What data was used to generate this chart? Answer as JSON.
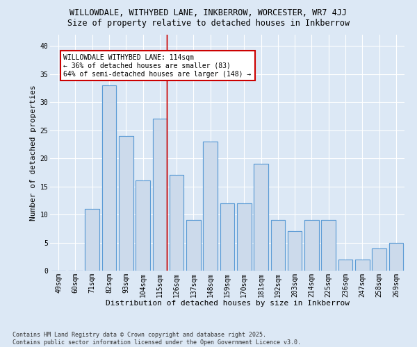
{
  "title1": "WILLOWDALE, WITHYBED LANE, INKBERROW, WORCESTER, WR7 4JJ",
  "title2": "Size of property relative to detached houses in Inkberrow",
  "xlabel": "Distribution of detached houses by size in Inkberrow",
  "ylabel": "Number of detached properties",
  "categories": [
    "49sqm",
    "60sqm",
    "71sqm",
    "82sqm",
    "93sqm",
    "104sqm",
    "115sqm",
    "126sqm",
    "137sqm",
    "148sqm",
    "159sqm",
    "170sqm",
    "181sqm",
    "192sqm",
    "203sqm",
    "214sqm",
    "225sqm",
    "236sqm",
    "247sqm",
    "258sqm",
    "269sqm"
  ],
  "values": [
    0,
    0,
    11,
    33,
    24,
    16,
    27,
    17,
    9,
    23,
    12,
    12,
    19,
    9,
    7,
    9,
    9,
    2,
    2,
    4,
    5
  ],
  "bar_color": "#ccdaeb",
  "bar_edge_color": "#5b9bd5",
  "red_line_index": 6,
  "annotation_text": "WILLOWDALE WITHYBED LANE: 114sqm\n← 36% of detached houses are smaller (83)\n64% of semi-detached houses are larger (148) →",
  "annotation_box_color": "#ffffff",
  "annotation_box_edge": "#cc0000",
  "ylim": [
    0,
    42
  ],
  "yticks": [
    0,
    5,
    10,
    15,
    20,
    25,
    30,
    35,
    40
  ],
  "background_color": "#dce8f5",
  "plot_background": "#dce8f5",
  "footer_line1": "Contains HM Land Registry data © Crown copyright and database right 2025.",
  "footer_line2": "Contains public sector information licensed under the Open Government Licence v3.0.",
  "title_fontsize": 8.5,
  "subtitle_fontsize": 8.5,
  "axis_fontsize": 8,
  "tick_fontsize": 7,
  "annot_fontsize": 7
}
